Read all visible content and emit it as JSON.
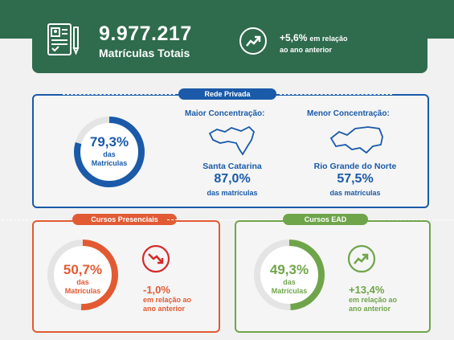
{
  "summary": {
    "total": "9.977.217",
    "total_label": "Matrículas Totais",
    "change": "+5,6%",
    "change_text1": "em relação",
    "change_text2": "ao ano anterior"
  },
  "private": {
    "badge": "Rede Privada",
    "percent": "79,3%",
    "label1": "das",
    "label2": "Matrículas",
    "share": 0.793,
    "max_title": "Maior Concentração:",
    "max_state": "Santa Catarina",
    "max_pct": "87,0%",
    "max_sub": "das matrículas",
    "min_title": "Menor Concentração:",
    "min_state": "Rio Grande do Norte",
    "min_pct": "57,5%",
    "min_sub": "das matrículas"
  },
  "presencial": {
    "badge": "Cursos Presenciais",
    "percent": "50,7%",
    "label1": "das",
    "label2": "Matrículas",
    "share": 0.507,
    "change": "-1,0%",
    "change_text1": "em relação ao",
    "change_text2": "ano anterior"
  },
  "ead": {
    "badge": "Cursos EAD",
    "percent": "49,3%",
    "label1": "das",
    "label2": "Matrículas",
    "share": 0.493,
    "change": "+13,4%",
    "change_text1": "em relação ao",
    "change_text2": "ano anterior"
  },
  "colors": {
    "green_dark": "#2f6b4d",
    "blue": "#1a5aa8",
    "red": "#e25a33",
    "green": "#6fa54a"
  },
  "icons": [
    "document-icon",
    "trend-up-icon",
    "santa-catarina-map-icon",
    "rio-grande-do-norte-map-icon",
    "trend-down-icon"
  ]
}
